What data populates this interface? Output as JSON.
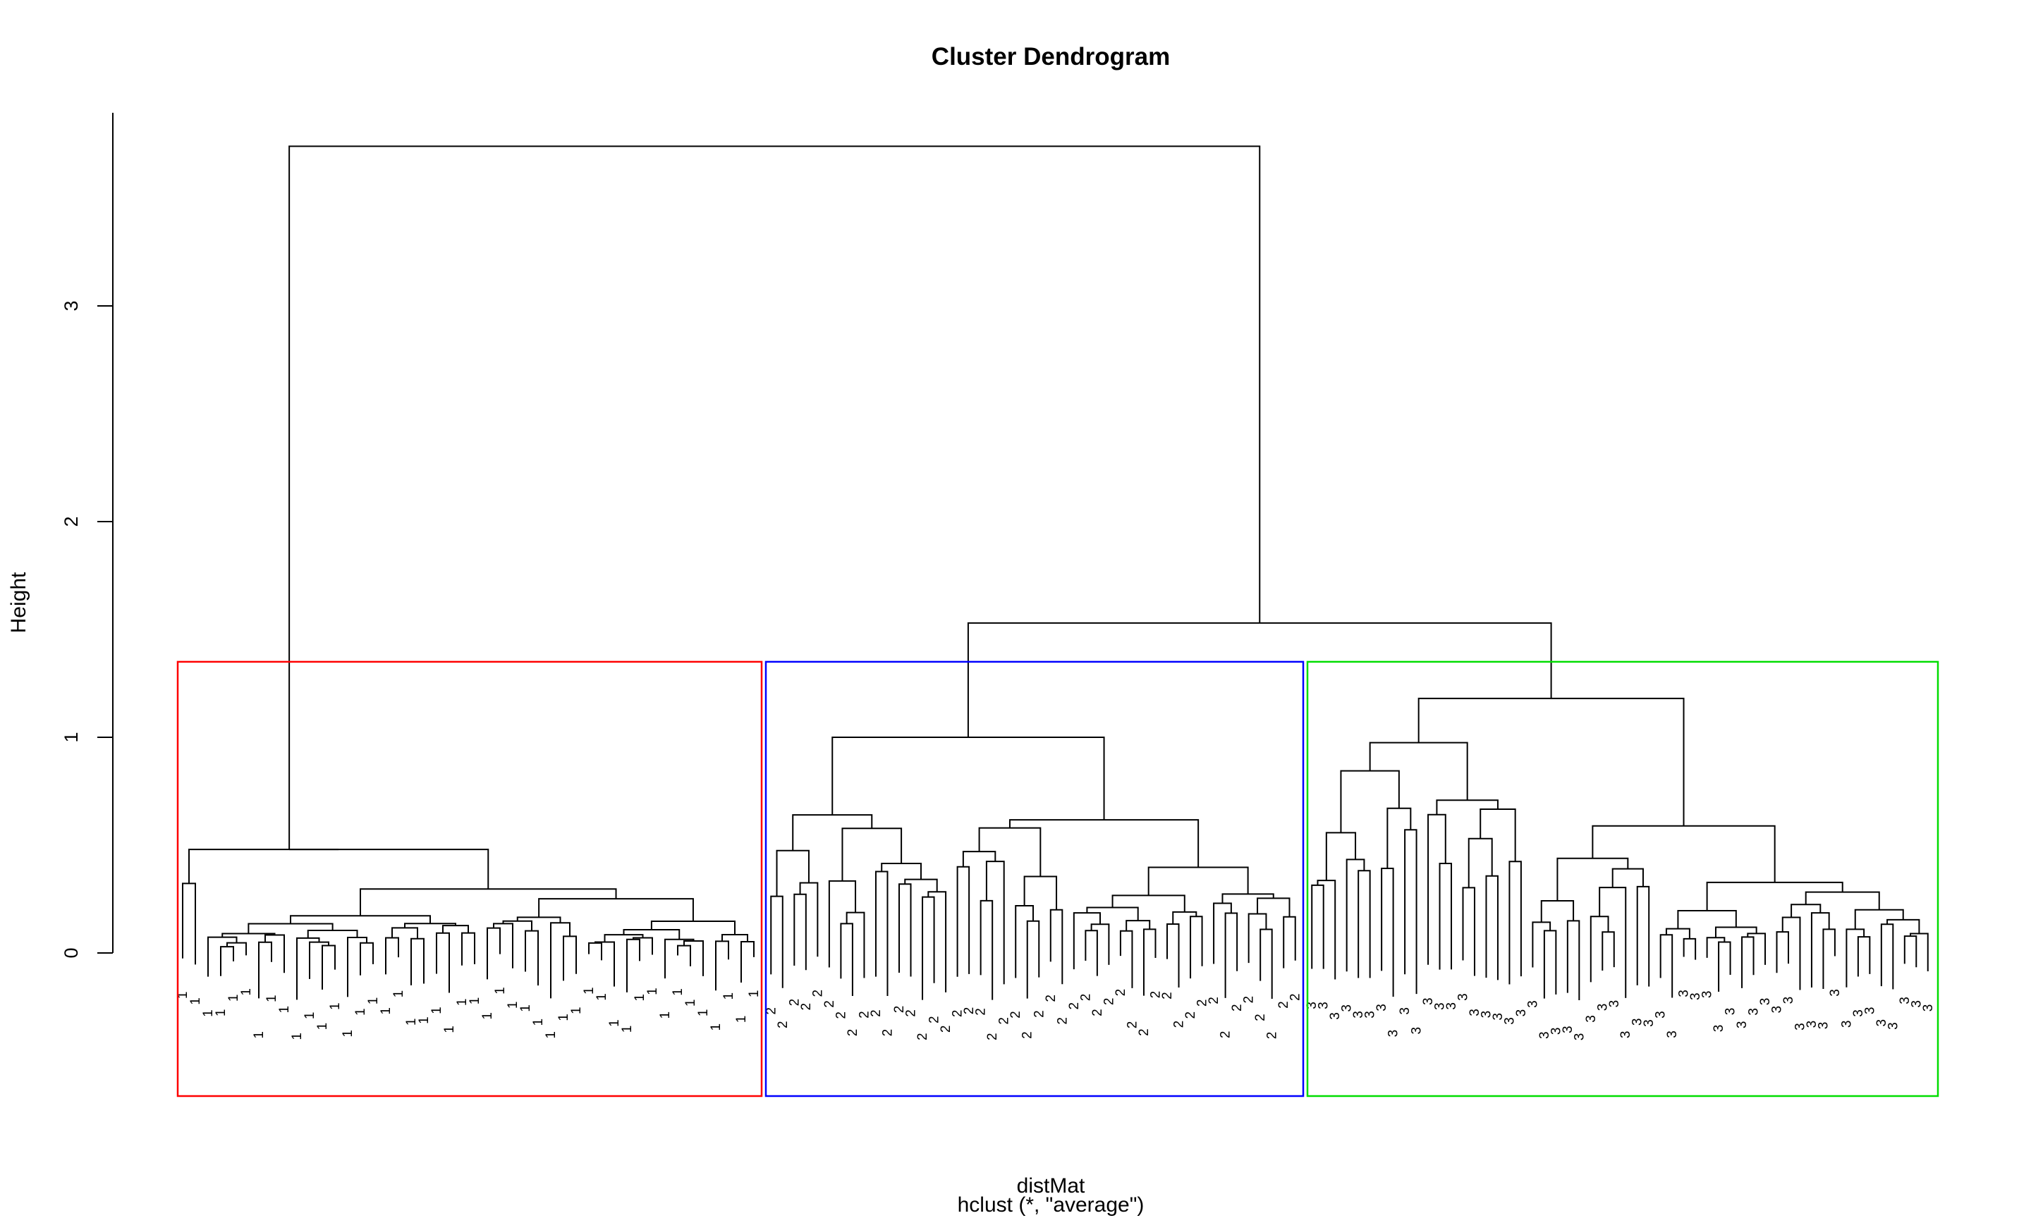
{
  "chart_data": {
    "type": "dendrogram",
    "title": "Cluster Dendrogram",
    "xlabel": "distMat",
    "sublabel": "hclust (*, \"average\")",
    "ylabel": "Height",
    "ylim": [
      0,
      3.7
    ],
    "yticks": [
      0,
      1,
      2,
      3
    ],
    "root_height": 3.74,
    "clusters": [
      {
        "label": "1",
        "color": "#ff0000",
        "leaves": 46
      },
      {
        "label": "2",
        "color": "#0000ff",
        "leaves": 46
      },
      {
        "label": "3",
        "color": "#00dd00",
        "leaves": 54
      }
    ],
    "merges": [
      {
        "name": "cluster-2-3-merge",
        "height": 1.53
      },
      {
        "name": "cluster-2-merge",
        "height": 1.0
      },
      {
        "name": "cluster-3-merge",
        "height": 1.18
      },
      {
        "name": "cluster-1-merge",
        "height": 0.48
      }
    ],
    "rect_height": 1.35
  }
}
